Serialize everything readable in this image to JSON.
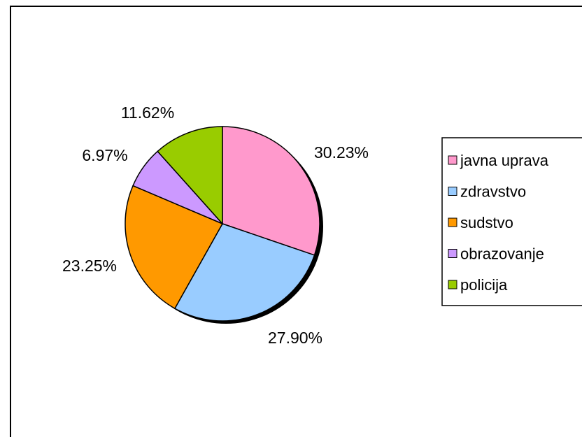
{
  "chart_data": {
    "type": "pie",
    "title": "",
    "categories": [
      "javna uprava",
      "zdravstvo",
      "sudstvo",
      "obrazovanje",
      "policija"
    ],
    "values": [
      30.23,
      27.9,
      23.25,
      6.97,
      11.62
    ],
    "labels": [
      "30.23%",
      "27.90%",
      "23.25%",
      "6.97%",
      "11.62%"
    ],
    "colors": [
      "#ff99cc",
      "#99ccff",
      "#ff9900",
      "#cc99ff",
      "#99cc00"
    ],
    "start_angle_deg": 0,
    "direction": "clockwise",
    "legend_position": "right",
    "legend": [
      {
        "label": "javna uprava",
        "color": "#ff99cc"
      },
      {
        "label": "zdravstvo",
        "color": "#99ccff"
      },
      {
        "label": "sudstvo",
        "color": "#ff9900"
      },
      {
        "label": "obrazovanje",
        "color": "#cc99ff"
      },
      {
        "label": "policija",
        "color": "#99cc00"
      }
    ]
  }
}
